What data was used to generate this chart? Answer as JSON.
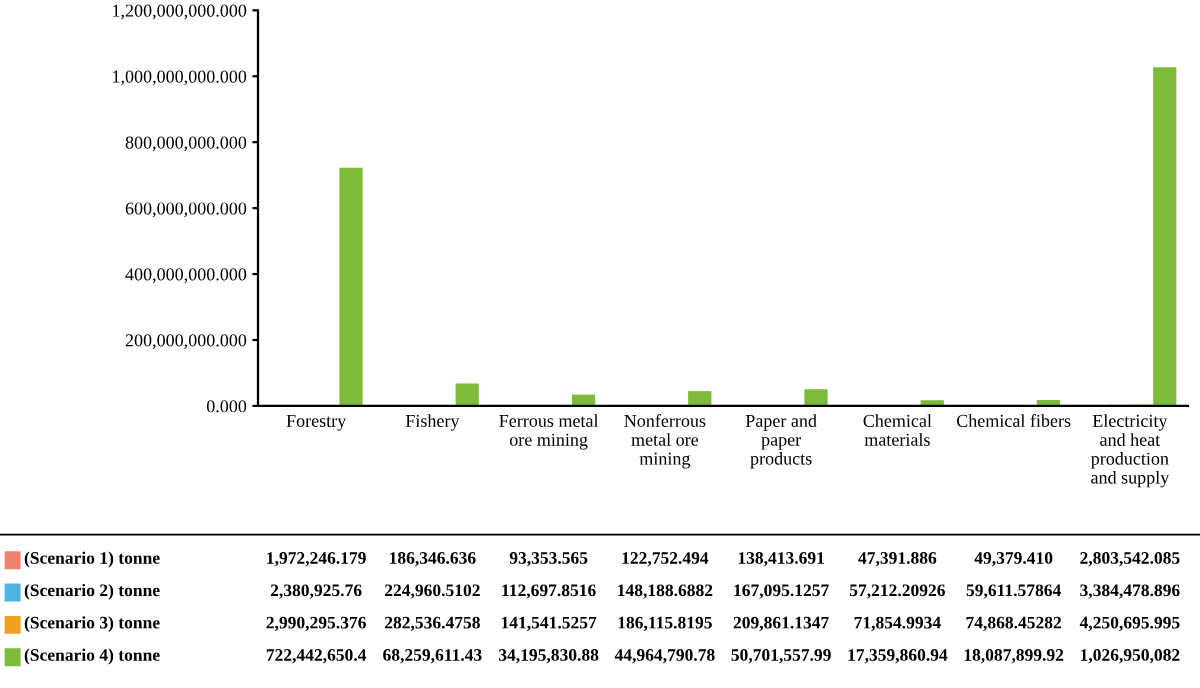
{
  "chart_data": {
    "type": "bar",
    "categories": [
      "Forestry",
      "Fishery",
      "Ferrous metal\nore mining",
      "Nonferrous\nmetal ore\nmining",
      "Paper and\npaper\nproducts",
      "Chemical\nmaterials",
      "Chemical fibers",
      "Electricity\nand heat\nproduction\nand supply"
    ],
    "series": [
      {
        "name": "(Scenario 1) tonne",
        "color": "#f08070",
        "values": [
          1972246.179,
          186346.636,
          93353.565,
          122752.494,
          138413.691,
          47391.886,
          49379.41,
          2803542.085
        ],
        "value_labels": [
          "1,972,246.179",
          "186,346.636",
          "93,353.565",
          "122,752.494",
          "138,413.691",
          "47,391.886",
          "49,379.410",
          "2,803,542.085"
        ]
      },
      {
        "name": "(Scenario 2) tonne",
        "color": "#4bb4e0",
        "values": [
          2380925.76,
          224960.5102,
          112697.8516,
          148188.6882,
          167095.1257,
          57212.20926,
          59611.57864,
          3384478.896
        ],
        "value_labels": [
          "2,380,925.76",
          "224,960.5102",
          "112,697.8516",
          "148,188.6882",
          "167,095.1257",
          "57,212.20926",
          "59,611.57864",
          "3,384,478.896"
        ]
      },
      {
        "name": "(Scenario 3) tonne",
        "color": "#f0a020",
        "values": [
          2990295.376,
          282536.4758,
          141541.5257,
          186115.8195,
          209861.1347,
          71854.9934,
          74868.45282,
          4250695.995
        ],
        "value_labels": [
          "2,990,295.376",
          "282,536.4758",
          "141,541.5257",
          "186,115.8195",
          "209,861.1347",
          "71,854.9934",
          "74,868.45282",
          "4,250,695.995"
        ]
      },
      {
        "name": "(Scenario 4) tonne",
        "color": "#7cbc3a",
        "values": [
          722442650.4,
          68259611.43,
          34195830.88,
          44964790.78,
          50701557.99,
          17359860.94,
          18087899.92,
          1026950082
        ],
        "value_labels": [
          "722,442,650.4",
          "68,259,611.43",
          "34,195,830.88",
          "44,964,790.78",
          "50,701,557.99",
          "17,359,860.94",
          "18,087,899.92",
          "1,026,950,082"
        ]
      }
    ],
    "ylim": [
      0,
      1200000000
    ],
    "yticks": [
      {
        "value": 0,
        "label": "0.000"
      },
      {
        "value": 200000000,
        "label": "200,000,000.000"
      },
      {
        "value": 400000000,
        "label": "400,000,000.000"
      },
      {
        "value": 600000000,
        "label": "600,000,000.000"
      },
      {
        "value": 800000000,
        "label": "800,000,000.000"
      },
      {
        "value": 1000000000,
        "label": "1,000,000,000.000"
      },
      {
        "value": 1200000000,
        "label": "1,200,000,000.000"
      }
    ],
    "legend": "bottom"
  }
}
